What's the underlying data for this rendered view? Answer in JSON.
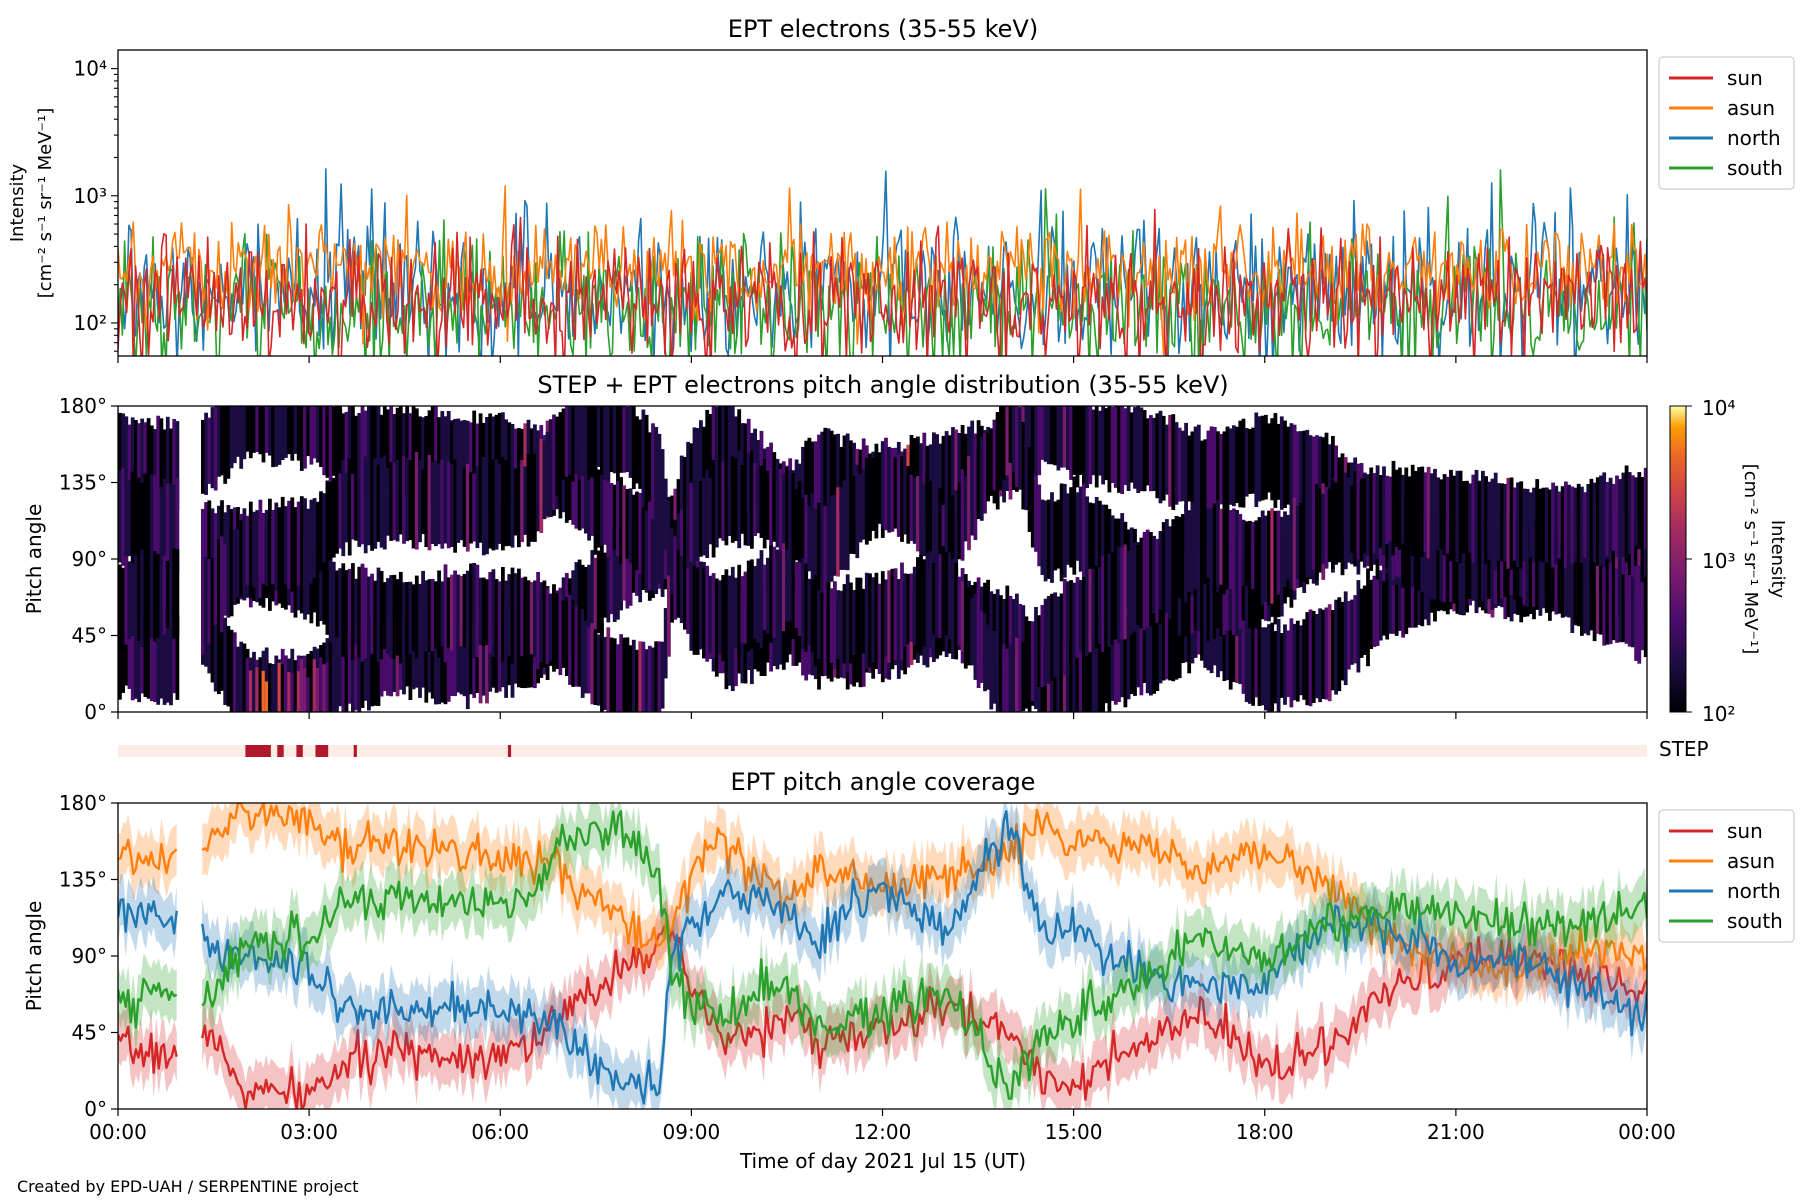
{
  "footer": "Created by EPD-UAH / SERPENTINE project",
  "chart_data": [
    {
      "id": "intensity",
      "type": "line",
      "title": "EPT electrons (35-55 keV)",
      "ylabel": "Intensity",
      "ylabel_units": "[cm⁻² s⁻¹ sr⁻¹ MeV⁻¹]",
      "yscale": "log",
      "ylim": [
        55,
        14000
      ],
      "yticks": [
        100,
        1000,
        10000
      ],
      "ytick_labels": [
        "10²",
        "10³",
        "10⁴"
      ],
      "xlim": [
        0,
        24
      ],
      "xticks": [
        0,
        3,
        6,
        9,
        12,
        15,
        18,
        21,
        24
      ],
      "legend_position": "right",
      "series": [
        {
          "name": "sun",
          "color": "#d62728",
          "typical_median": 150,
          "spread": 2.0,
          "peaks": [
            [
              2.1,
              360
            ],
            [
              9.8,
              400
            ],
            [
              21.5,
              390
            ],
            [
              23.2,
              370
            ]
          ]
        },
        {
          "name": "asun",
          "color": "#ff7f0e",
          "typical_median": 260,
          "spread": 1.7,
          "peaks": [
            [
              1.0,
              610
            ],
            [
              3.2,
              590
            ],
            [
              7.5,
              580
            ],
            [
              13.0,
              620
            ],
            [
              17.3,
              830
            ],
            [
              23.5,
              600
            ]
          ]
        },
        {
          "name": "north",
          "color": "#1f77b4",
          "typical_median": 180,
          "spread": 2.2,
          "peaks": [
            [
              2.8,
              660
            ],
            [
              16.1,
              640
            ],
            [
              20.2,
              760
            ],
            [
              23.7,
              1020
            ],
            [
              24.0,
              460
            ]
          ]
        },
        {
          "name": "south",
          "color": "#2ca02c",
          "typical_median": 140,
          "spread": 2.1,
          "peaks": [
            [
              0.1,
              440
            ],
            [
              14.6,
              510
            ],
            [
              18.7,
              620
            ],
            [
              23.8,
              610
            ]
          ]
        }
      ]
    },
    {
      "id": "pad",
      "type": "heatmap",
      "title": "STEP + EPT electrons pitch angle distribution (35-55 keV)",
      "ylabel": "Pitch angle",
      "ylim": [
        0,
        180
      ],
      "yticks": [
        0,
        45,
        90,
        135,
        180
      ],
      "ytick_labels": [
        "0°",
        "45°",
        "90°",
        "135°",
        "180°"
      ],
      "xlim": [
        0,
        24
      ],
      "xticks": [
        0,
        3,
        6,
        9,
        12,
        15,
        18,
        21,
        24
      ],
      "colorbar": {
        "label": "Intensity",
        "units": "[cm⁻² s⁻¹ sr⁻¹ MeV⁻¹]",
        "scale": "log",
        "range": [
          100,
          10000
        ],
        "ticks": [
          100,
          1000,
          10000
        ],
        "tick_labels": [
          "10²",
          "10³",
          "10⁴"
        ],
        "colormap": "inferno"
      },
      "typical_intensity": 180,
      "data_gaps_hours": [
        [
          0.95,
          1.3
        ]
      ],
      "step_enhancement": {
        "from": 2.0,
        "to": 3.3,
        "pitch_max": 35,
        "intensity": 600
      }
    },
    {
      "id": "step",
      "type": "bar",
      "label": "STEP",
      "base_color": "#fcece6",
      "mark_color": "#b2182b",
      "xlim": [
        0,
        24
      ],
      "marks": [
        [
          2.0,
          2.4
        ],
        [
          2.5,
          2.6
        ],
        [
          2.8,
          2.9
        ],
        [
          3.1,
          3.3
        ],
        [
          3.7,
          3.75
        ],
        [
          6.12,
          6.17
        ]
      ]
    },
    {
      "id": "coverage",
      "type": "line",
      "title": "EPT pitch angle coverage",
      "ylabel": "Pitch angle",
      "xlabel": "Time of day 2021 Jul 15 (UT)",
      "ylim": [
        0,
        180
      ],
      "yticks": [
        0,
        45,
        90,
        135,
        180
      ],
      "ytick_labels": [
        "0°",
        "45°",
        "90°",
        "135°",
        "180°"
      ],
      "xlim": [
        0,
        24
      ],
      "xticks": [
        0,
        3,
        6,
        9,
        12,
        15,
        18,
        21,
        24
      ],
      "xtick_labels": [
        "00:00",
        "03:00",
        "06:00",
        "09:00",
        "12:00",
        "15:00",
        "18:00",
        "21:00",
        "00:00"
      ],
      "legend_position": "right",
      "data_gaps_hours": [
        [
          0.95,
          1.3
        ]
      ],
      "band_halfwidth_deg": 15,
      "series": [
        {
          "name": "sun",
          "color": "#d62728",
          "x": [
            0,
            0.9,
            1.3,
            2,
            3,
            3.5,
            4.5,
            5.5,
            6.5,
            7,
            7.5,
            8,
            8.5,
            8.7,
            9,
            9.5,
            10,
            10.5,
            11,
            12,
            13,
            14,
            14.5,
            15,
            16,
            17,
            18,
            19,
            20,
            21,
            22,
            23,
            24
          ],
          "y": [
            35,
            32,
            50,
            10,
            8,
            25,
            35,
            30,
            40,
            55,
            70,
            90,
            95,
            100,
            70,
            40,
            45,
            55,
            40,
            45,
            60,
            45,
            20,
            15,
            35,
            55,
            25,
            35,
            70,
            85,
            90,
            80,
            70
          ]
        },
        {
          "name": "asun",
          "color": "#ff7f0e",
          "x": [
            0,
            0.9,
            1.3,
            2,
            3,
            3.5,
            4.5,
            5.5,
            6.5,
            7,
            7.5,
            8,
            8.5,
            8.7,
            9,
            9.5,
            10,
            10.5,
            11,
            12,
            13,
            14,
            14.5,
            15,
            16,
            17,
            18,
            19,
            20,
            21,
            22,
            23,
            24
          ],
          "y": [
            150,
            145,
            150,
            175,
            170,
            155,
            155,
            150,
            145,
            140,
            120,
            110,
            95,
            110,
            140,
            160,
            140,
            120,
            140,
            130,
            140,
            150,
            170,
            160,
            155,
            140,
            150,
            135,
            100,
            90,
            80,
            95,
            90
          ]
        },
        {
          "name": "north",
          "color": "#1f77b4",
          "x": [
            0,
            0.9,
            1.3,
            2,
            3,
            3.5,
            4.5,
            5.5,
            6.5,
            7,
            7.5,
            8,
            8.5,
            8.7,
            9,
            9.5,
            10,
            10.5,
            11,
            12,
            13,
            14,
            14.5,
            15,
            16,
            17,
            18,
            19,
            20,
            21,
            22,
            23,
            24
          ],
          "y": [
            115,
            110,
            100,
            90,
            80,
            60,
            55,
            60,
            55,
            45,
            25,
            15,
            15,
            90,
            110,
            125,
            125,
            115,
            95,
            135,
            100,
            170,
            100,
            110,
            80,
            70,
            75,
            110,
            105,
            85,
            90,
            70,
            55
          ]
        },
        {
          "name": "south",
          "color": "#2ca02c",
          "x": [
            0,
            0.9,
            1.3,
            2,
            3,
            3.5,
            4.5,
            5.5,
            6.5,
            7,
            7.5,
            8,
            8.5,
            8.7,
            9,
            9.5,
            10,
            10.5,
            11,
            12,
            13,
            14,
            14.5,
            15,
            16,
            17,
            18,
            19,
            20,
            21,
            22,
            23,
            24
          ],
          "y": [
            65,
            70,
            60,
            95,
            100,
            120,
            125,
            120,
            125,
            160,
            165,
            160,
            135,
            80,
            60,
            55,
            65,
            75,
            50,
            55,
            70,
            10,
            40,
            55,
            75,
            100,
            90,
            110,
            120,
            115,
            110,
            110,
            120
          ]
        }
      ]
    }
  ]
}
